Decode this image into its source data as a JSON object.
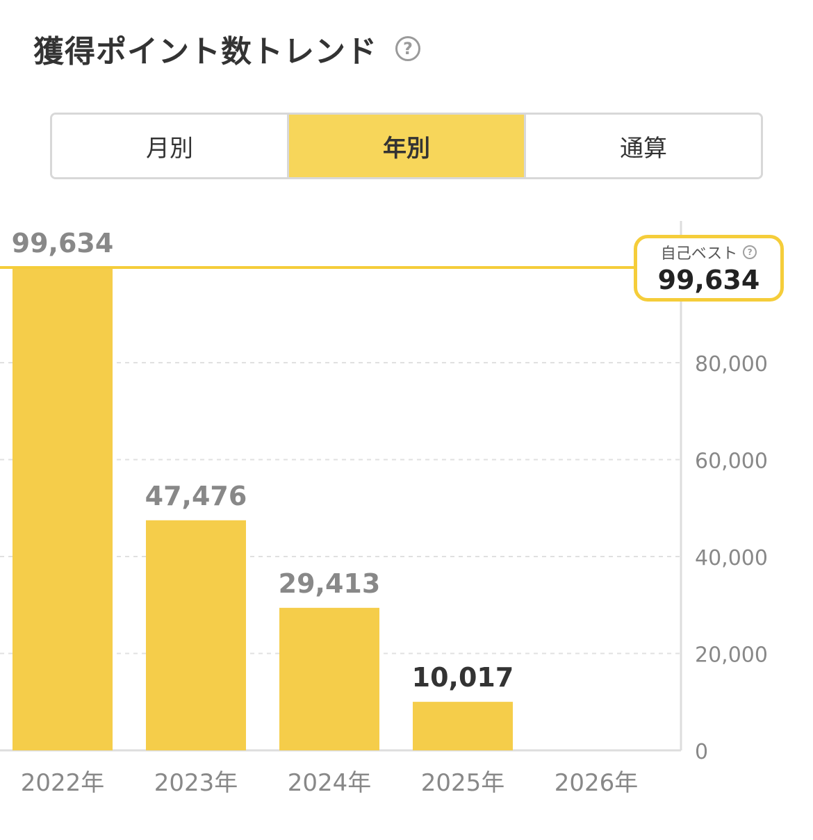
{
  "header": {
    "title": "獲得ポイント数トレンド",
    "help_icon": "question-circle-icon"
  },
  "tabs": [
    {
      "label": "月別",
      "active": false
    },
    {
      "label": "年別",
      "active": true
    },
    {
      "label": "通算",
      "active": false
    }
  ],
  "best": {
    "label": "自己ベスト",
    "value": "99,634",
    "help_icon": "question-circle-icon"
  },
  "colors": {
    "bar": "#f5cd4a",
    "accent": "#f5cd3a",
    "grid": "#e0e0e0",
    "tick": "#888888"
  },
  "chart_data": {
    "type": "bar",
    "categories": [
      "2022年",
      "2023年",
      "2024年",
      "2025年",
      "2026年"
    ],
    "values": [
      99634,
      47476,
      29413,
      10017,
      null
    ],
    "data_labels": [
      "99,634",
      "47,476",
      "29,413",
      "10,017",
      ""
    ],
    "highlight_label_index": 3,
    "yticks": [
      0,
      20000,
      40000,
      60000,
      80000
    ],
    "ytick_labels": [
      "0",
      "20,000",
      "40,000",
      "60,000",
      "80,000"
    ],
    "ylim": [
      0,
      99634
    ],
    "reference_line": {
      "value": 99634
    },
    "grid": true,
    "yaxis_position": "right"
  }
}
